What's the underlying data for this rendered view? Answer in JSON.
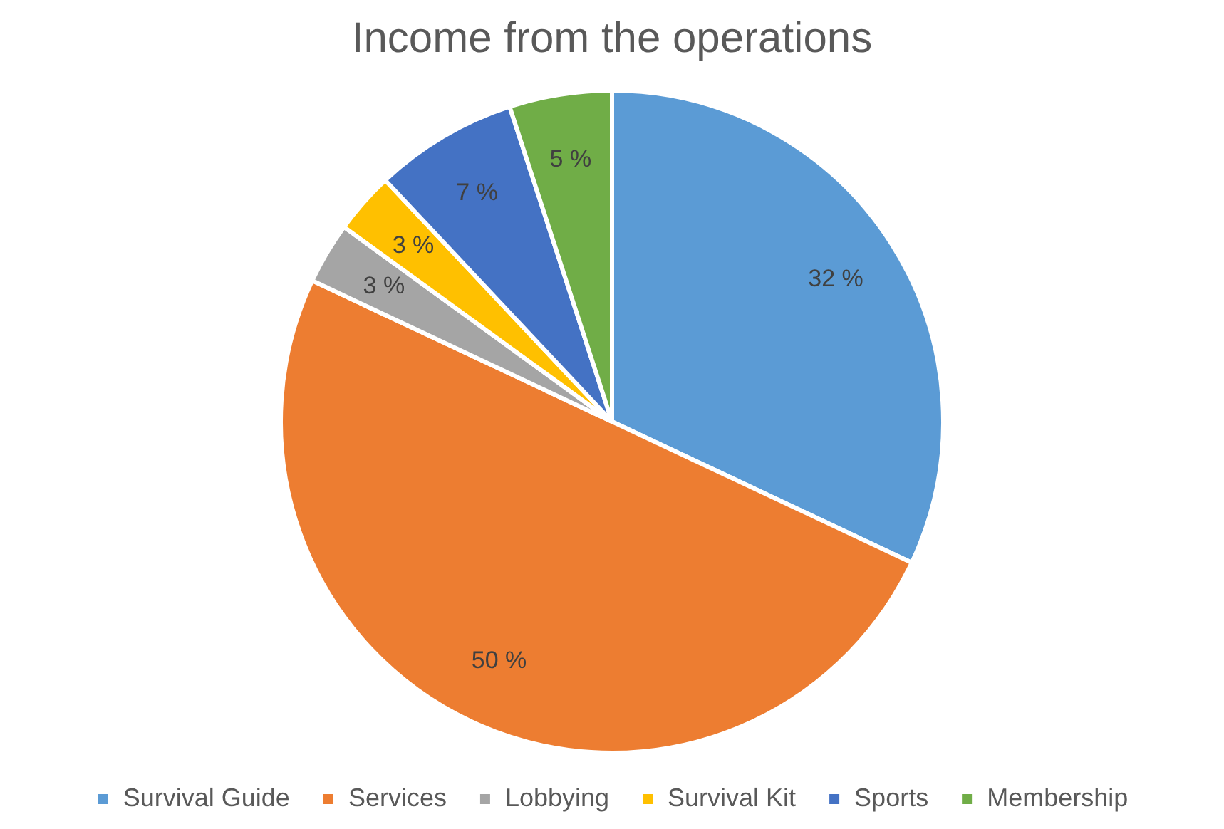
{
  "chart_data": {
    "type": "pie",
    "title": "Income from the operations",
    "categories": [
      "Survival Guide",
      "Services",
      "Lobbying",
      "Survival Kit",
      "Sports",
      "Membership"
    ],
    "values": [
      32,
      50,
      3,
      3,
      7,
      5
    ],
    "value_labels": [
      "32 %",
      "50 %",
      "3 %",
      "3 %",
      "7 %",
      "5 %"
    ],
    "colors": [
      "#5b9bd5",
      "#ed7d31",
      "#a5a5a5",
      "#ffc000",
      "#4472c4",
      "#70ad47"
    ],
    "legend": "bottom"
  }
}
